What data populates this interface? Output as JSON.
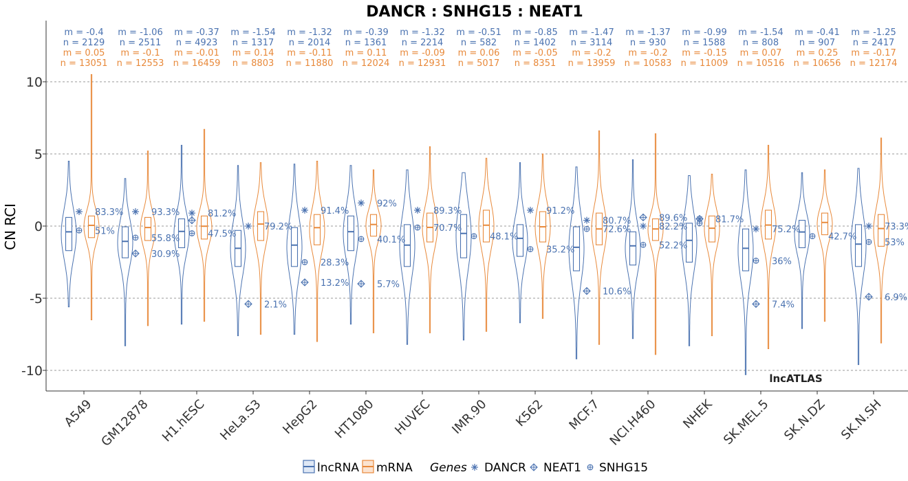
{
  "chart_data": {
    "type": "violin",
    "title": "DANCR : SNHG15 : NEAT1",
    "ylabel": "CN RCI",
    "xlabel": "",
    "ylim": [
      -12,
      14
    ],
    "yticks": [
      10,
      5,
      0,
      -5,
      -10
    ],
    "grid": true,
    "watermark": "lncATLAS",
    "colors": {
      "lncRNA": "#4a72b0",
      "mRNA": "#e8893a"
    },
    "categories": [
      "A549",
      "GM12878",
      "H1.hESC",
      "HeLa.S3",
      "HepG2",
      "HT1080",
      "HUVEC",
      "IMR.90",
      "K562",
      "MCF.7",
      "NCI.H460",
      "NHEK",
      "SK.MEL.5",
      "SK.N.DZ",
      "SK.N.SH"
    ],
    "series": [
      {
        "name": "lncRNA",
        "color": "#4a72b0",
        "stats": [
          {
            "m": "m = -0.4",
            "n": "n = 2129",
            "median": -0.4,
            "q1": -1.7,
            "q3": 0.6,
            "min": -5.6,
            "max": 4.5
          },
          {
            "m": "m = -1.06",
            "n": "n = 2511",
            "median": -1.06,
            "q1": -2.2,
            "q3": -0.05,
            "min": -8.3,
            "max": 3.3
          },
          {
            "m": "m = -0.37",
            "n": "n = 4923",
            "median": -0.37,
            "q1": -1.5,
            "q3": 0.5,
            "min": -6.8,
            "max": 5.6
          },
          {
            "m": "m = -1.54",
            "n": "n = 1317",
            "median": -1.54,
            "q1": -2.8,
            "q3": -0.3,
            "min": -7.6,
            "max": 4.2
          },
          {
            "m": "m = -1.32",
            "n": "n = 2014",
            "median": -1.32,
            "q1": -2.8,
            "q3": -0.1,
            "min": -7.5,
            "max": 4.3
          },
          {
            "m": "m = -0.39",
            "n": "n = 1361",
            "median": -0.39,
            "q1": -1.7,
            "q3": 0.7,
            "min": -6.8,
            "max": 4.2
          },
          {
            "m": "m = -1.32",
            "n": "n = 2214",
            "median": -1.32,
            "q1": -2.8,
            "q3": 0.1,
            "min": -8.2,
            "max": 3.9
          },
          {
            "m": "m = -0.51",
            "n": "n = 582",
            "median": -0.51,
            "q1": -2.2,
            "q3": 0.8,
            "min": -7.9,
            "max": 3.7
          },
          {
            "m": "m = -0.85",
            "n": "n = 1402",
            "median": -0.85,
            "q1": -2.1,
            "q3": 0.1,
            "min": -6.7,
            "max": 4.4
          },
          {
            "m": "m = -1.47",
            "n": "n = 3114",
            "median": -1.47,
            "q1": -3.1,
            "q3": -0.05,
            "min": -9.2,
            "max": 4.1
          },
          {
            "m": "m = -1.37",
            "n": "n = 930",
            "median": -1.37,
            "q1": -2.7,
            "q3": -0.4,
            "min": -7.8,
            "max": 4.6
          },
          {
            "m": "m = -0.99",
            "n": "n = 1588",
            "median": -0.99,
            "q1": -2.5,
            "q3": 0.2,
            "min": -8.3,
            "max": 3.5
          },
          {
            "m": "m = -1.54",
            "n": "n = 808",
            "median": -1.54,
            "q1": -3.1,
            "q3": -0.2,
            "min": -10.3,
            "max": 3.9
          },
          {
            "m": "m = -0.41",
            "n": "n = 907",
            "median": -0.41,
            "q1": -1.5,
            "q3": 0.4,
            "min": -7.1,
            "max": 3.7
          },
          {
            "m": "m = -1.25",
            "n": "n = 2417",
            "median": -1.25,
            "q1": -2.8,
            "q3": 0.1,
            "min": -9.6,
            "max": 4.0
          }
        ]
      },
      {
        "name": "mRNA",
        "color": "#e8893a",
        "stats": [
          {
            "m": "m = 0.05",
            "n": "n = 13051",
            "median": 0.05,
            "q1": -0.8,
            "q3": 0.7,
            "min": -6.5,
            "max": 10.5
          },
          {
            "m": "m = -0.1",
            "n": "n = 12553",
            "median": -0.1,
            "q1": -1.0,
            "q3": 0.6,
            "min": -6.9,
            "max": 5.2
          },
          {
            "m": "m = -0.01",
            "n": "n = 16459",
            "median": -0.01,
            "q1": -0.9,
            "q3": 0.7,
            "min": -6.6,
            "max": 6.7
          },
          {
            "m": "m = 0.14",
            "n": "n = 8803",
            "median": 0.14,
            "q1": -1.0,
            "q3": 1.0,
            "min": -7.5,
            "max": 4.4
          },
          {
            "m": "m = -0.11",
            "n": "n = 11880",
            "median": -0.11,
            "q1": -1.3,
            "q3": 0.8,
            "min": -8.0,
            "max": 4.5
          },
          {
            "m": "m = 0.11",
            "n": "n = 12024",
            "median": 0.11,
            "q1": -0.7,
            "q3": 0.8,
            "min": -7.4,
            "max": 3.9
          },
          {
            "m": "m = -0.09",
            "n": "n = 12931",
            "median": -0.09,
            "q1": -1.1,
            "q3": 0.9,
            "min": -7.4,
            "max": 5.5
          },
          {
            "m": "m = 0.06",
            "n": "n = 5017",
            "median": 0.06,
            "q1": -1.1,
            "q3": 1.1,
            "min": -7.3,
            "max": 4.7
          },
          {
            "m": "m = -0.05",
            "n": "n = 8351",
            "median": -0.05,
            "q1": -1.1,
            "q3": 1.0,
            "min": -6.4,
            "max": 5.0
          },
          {
            "m": "m = -0.2",
            "n": "n = 13959",
            "median": -0.2,
            "q1": -1.3,
            "q3": 0.9,
            "min": -8.2,
            "max": 6.6
          },
          {
            "m": "m = -0.2",
            "n": "n = 10583",
            "median": -0.2,
            "q1": -1.0,
            "q3": 0.5,
            "min": -8.9,
            "max": 6.4
          },
          {
            "m": "m = -0.15",
            "n": "n = 11009",
            "median": -0.15,
            "q1": -1.1,
            "q3": 0.7,
            "min": -7.6,
            "max": 3.6
          },
          {
            "m": "m = 0.07",
            "n": "n = 10516",
            "median": 0.07,
            "q1": -0.9,
            "q3": 1.1,
            "min": -8.5,
            "max": 5.6
          },
          {
            "m": "m = 0.25",
            "n": "n = 10656",
            "median": 0.25,
            "q1": -0.6,
            "q3": 0.9,
            "min": -6.6,
            "max": 3.9
          },
          {
            "m": "m = -0.17",
            "n": "n = 12174",
            "median": -0.17,
            "q1": -1.4,
            "q3": 0.8,
            "min": -8.1,
            "max": 6.1
          }
        ]
      }
    ],
    "genes": [
      {
        "name": "DANCR",
        "marker": "asterisk",
        "values": [
          1.0,
          1.0,
          0.9,
          0.0,
          1.1,
          1.6,
          1.1,
          null,
          1.1,
          0.4,
          0.0,
          0.5,
          -0.2,
          null,
          0.0
        ],
        "labels": [
          "83.3%",
          "93.3%",
          "81.2%",
          "79.2%",
          "91.4%",
          "92%",
          "89.3%",
          "",
          "91.2%",
          "80.7%",
          "82.2%",
          "81.7%",
          "75.2%",
          "",
          "73.3%"
        ]
      },
      {
        "name": "NEAT1",
        "marker": "diamond-plus",
        "values": [
          null,
          -1.9,
          0.4,
          -5.4,
          -3.9,
          -4.0,
          null,
          null,
          null,
          -4.5,
          0.6,
          0.5,
          -5.4,
          null,
          -4.9
        ],
        "labels": [
          "",
          "30.9%",
          "",
          "2.1%",
          "13.2%",
          "5.7%",
          "",
          "",
          "",
          "10.6%",
          "89.6%",
          "",
          "7.4%",
          "",
          "6.9%"
        ]
      },
      {
        "name": "SNHG15",
        "marker": "circle-plus",
        "values": [
          -0.3,
          -0.8,
          -0.5,
          null,
          -2.5,
          -0.9,
          -0.1,
          -0.7,
          -1.6,
          -0.2,
          -1.3,
          0.2,
          -2.4,
          -0.7,
          -1.1
        ],
        "labels": [
          "51%",
          "55.8%",
          "47.5%",
          "",
          "28.3%",
          "40.1%",
          "70.7%",
          "48.1%",
          "35.2%",
          "72.6%",
          "52.2%",
          "",
          "36%",
          "42.7%",
          "53%"
        ]
      }
    ]
  },
  "legend": {
    "lncRNA_label": "lncRNA",
    "mRNA_label": "mRNA",
    "genes_title": "Genes",
    "gene_names": [
      "DANCR",
      "NEAT1",
      "SNHG15"
    ]
  }
}
